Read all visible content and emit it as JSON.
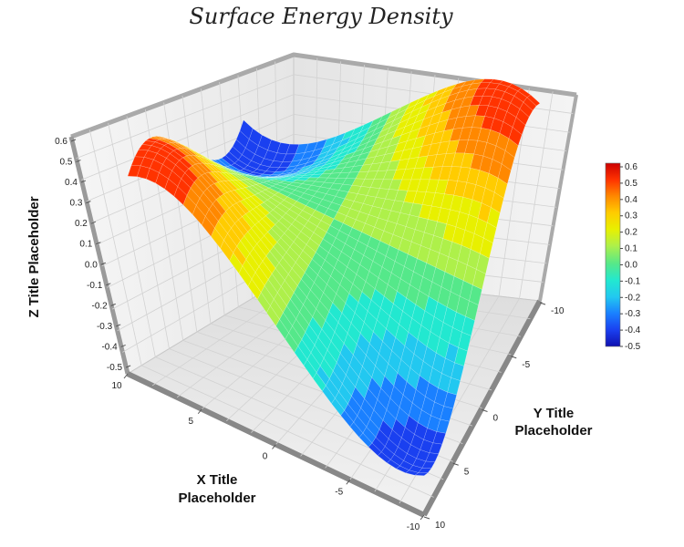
{
  "chart_data": {
    "type": "surface",
    "title": "Surface Energy Density",
    "xlabel_lines": [
      "X Title",
      "Placeholder"
    ],
    "ylabel_lines": [
      "Y Title",
      "Placeholder"
    ],
    "zlabel": "Z Title Placeholder",
    "x_ticks": [
      "10",
      "5",
      "0",
      "-5",
      "-10"
    ],
    "y_ticks": [
      "-10",
      "-5",
      "0",
      "5",
      "10"
    ],
    "z_ticks": [
      "0.6",
      "0.5",
      "0.4",
      "0.3",
      "0.2",
      "0.1",
      "0.0",
      "-0.1",
      "-0.2",
      "-0.3",
      "-0.4",
      "-0.5"
    ],
    "xlim": [
      -10,
      10
    ],
    "ylim": [
      -10,
      10
    ],
    "zlim": [
      -0.5,
      0.6
    ],
    "surface_formula": "z = sin(x/3) * sin(y/3) * (0.2 + 0.4*((x^2+y^2)/200)) approx; saddle-like surface with peaks near 0.6 and trough near -0.5",
    "grid": true,
    "legend": {
      "position": "right",
      "levels": [
        "0.6",
        "0.5",
        "0.4",
        "0.3",
        "0.2",
        "0.1",
        "0.0",
        "-0.1",
        "-0.2",
        "-0.3",
        "-0.4",
        "-0.5"
      ],
      "colors": [
        "#cc0000",
        "#ff3300",
        "#ff8800",
        "#ffcc00",
        "#e8f000",
        "#aef04a",
        "#55e88a",
        "#22e8d0",
        "#22c8f0",
        "#1a80ff",
        "#1a40f0",
        "#1010b0"
      ]
    }
  }
}
